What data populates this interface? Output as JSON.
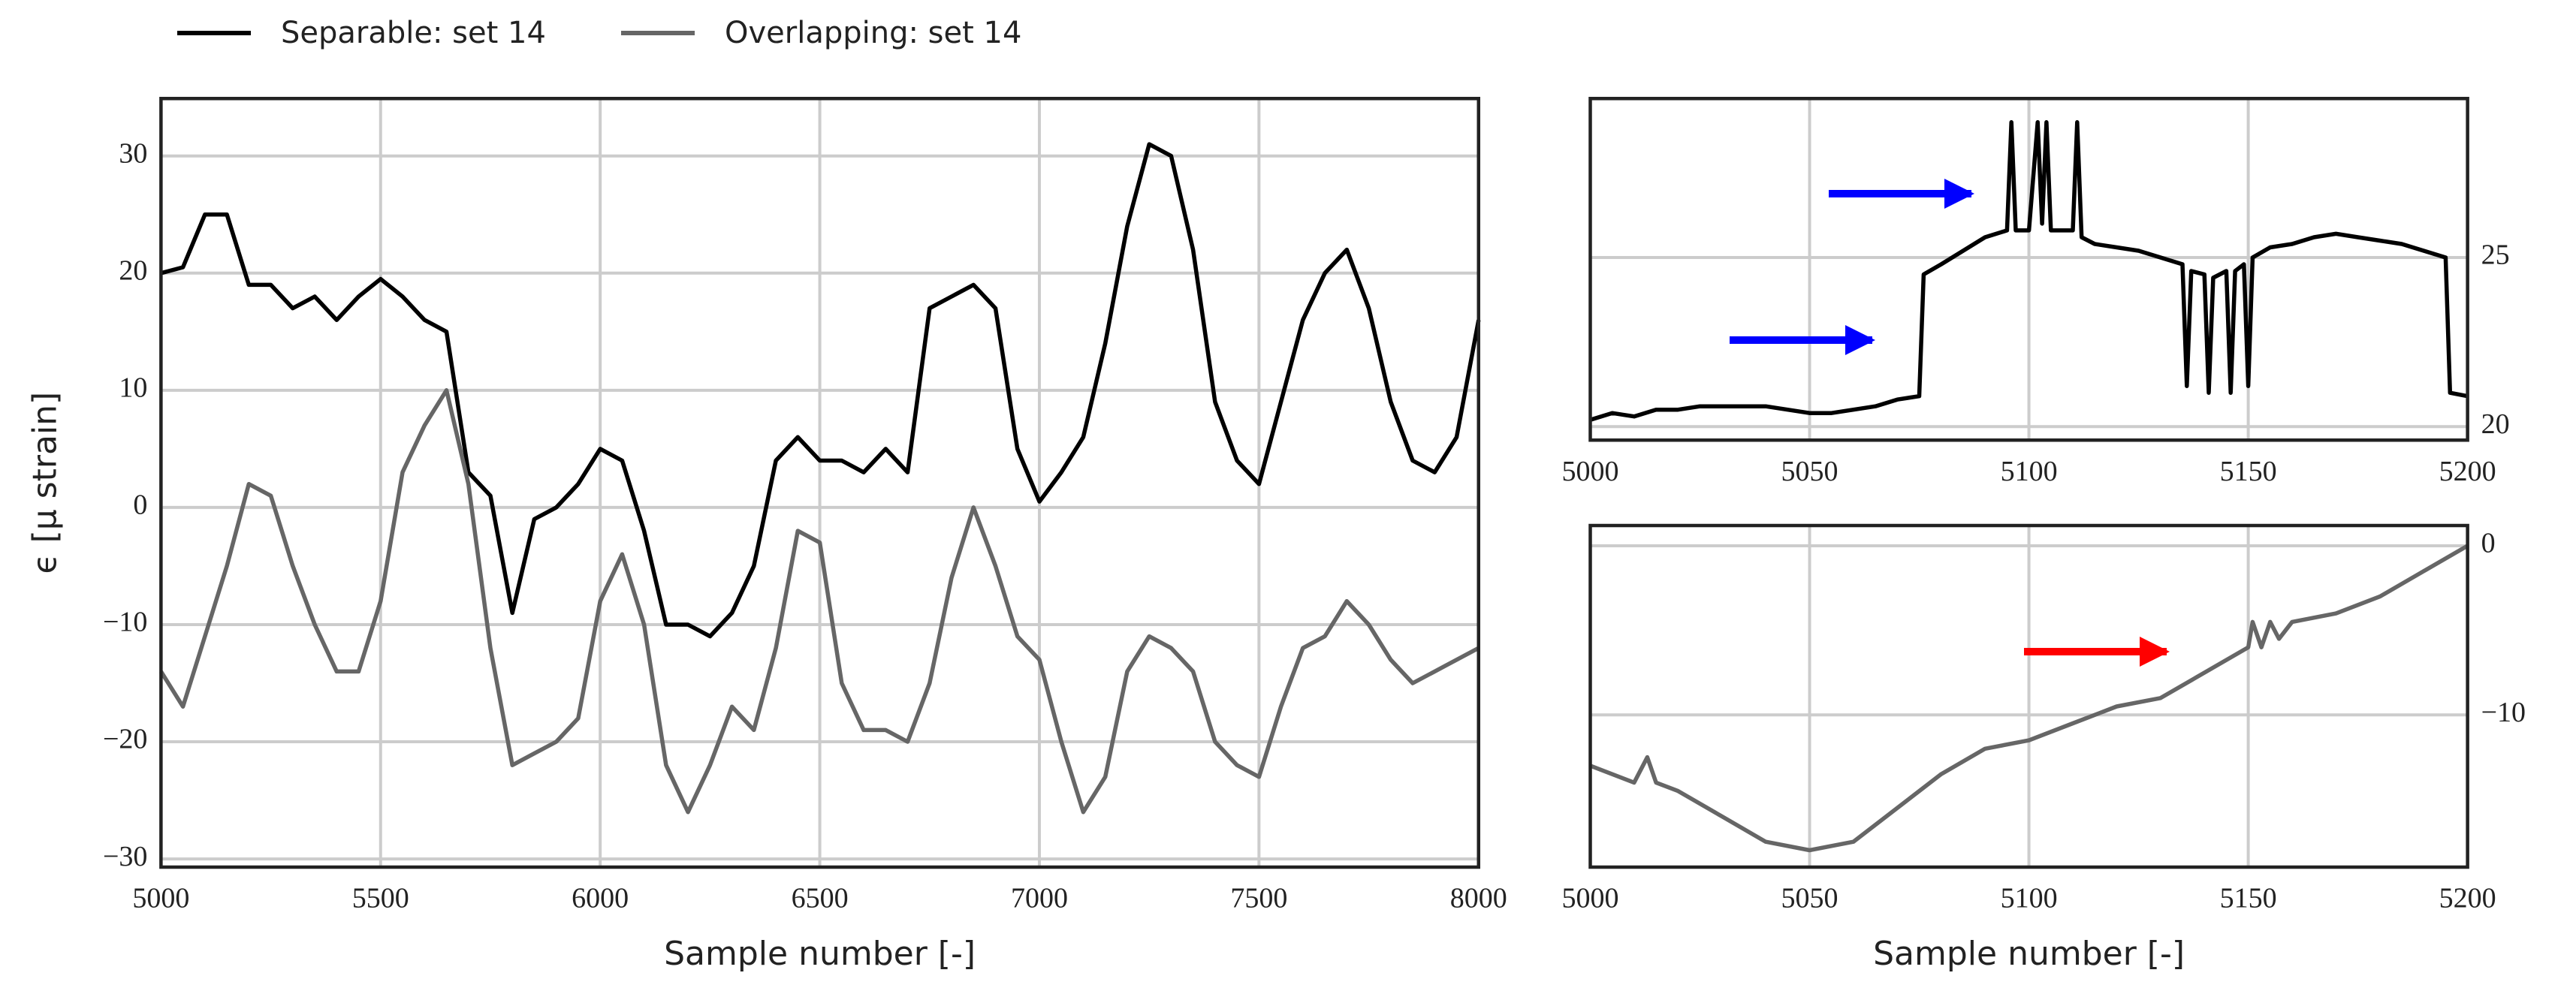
{
  "chart_data": [
    {
      "type": "line",
      "x_label": "Sample number [-]",
      "y_label": "ϵ [μ strain]",
      "grid": true,
      "ytick_side": "left",
      "xlim": [
        5000,
        8000
      ],
      "ylim": [
        -30.7,
        34.9
      ],
      "xticks": [
        5000,
        5500,
        6000,
        6500,
        7000,
        7500,
        8000
      ],
      "yticks": [
        {
          "value": -30,
          "label": "−30"
        },
        {
          "value": -20,
          "label": "−20"
        },
        {
          "value": -10,
          "label": "−10"
        },
        0,
        10,
        20,
        30
      ],
      "x": [
        5000,
        5050,
        5100,
        5150,
        5200,
        5250,
        5300,
        5350,
        5400,
        5450,
        5500,
        5550,
        5600,
        5650,
        5700,
        5750,
        5800,
        5850,
        5900,
        5950,
        6000,
        6050,
        6100,
        6150,
        6200,
        6250,
        6300,
        6350,
        6400,
        6450,
        6500,
        6550,
        6600,
        6650,
        6700,
        6750,
        6800,
        6850,
        6900,
        6950,
        7000,
        7050,
        7100,
        7150,
        7200,
        7250,
        7300,
        7350,
        7400,
        7450,
        7500,
        7550,
        7600,
        7650,
        7700,
        7750,
        7800,
        7850,
        7900,
        7950,
        8000
      ],
      "series": [
        {
          "name": "Separable: set 14",
          "color": "#000000",
          "values": [
            20,
            20.5,
            25,
            25,
            19,
            19,
            17,
            18,
            16,
            18,
            19.5,
            18,
            16,
            15,
            3,
            1,
            -9,
            -1,
            0,
            2,
            5,
            4,
            -2,
            -10,
            -10,
            -11,
            -9,
            -5,
            4,
            6,
            4,
            4,
            3,
            5,
            3,
            17,
            18,
            19,
            17,
            5,
            0.5,
            3,
            6,
            14,
            24,
            31,
            30,
            22,
            9,
            4,
            2,
            9,
            16,
            20,
            22,
            17,
            9,
            4,
            3,
            6,
            16
          ]
        },
        {
          "name": "Overlapping: set 14",
          "color": "#666666",
          "values": [
            -14,
            -17,
            -11,
            -5,
            2,
            1,
            -5,
            -10,
            -14,
            -14,
            -8,
            3,
            7,
            10,
            2,
            -12,
            -22,
            -21,
            -20,
            -18,
            -8,
            -4,
            -10,
            -22,
            -26,
            -22,
            -17,
            -19,
            -12,
            -2,
            -3,
            -15,
            -19,
            -19,
            -20,
            -15,
            -6,
            0,
            -5,
            -11,
            -13,
            -20,
            -26,
            -23,
            -14,
            -11,
            -12,
            -14,
            -20,
            -22,
            -23,
            -17,
            -12,
            -11,
            -8,
            -10,
            -13,
            -15,
            -14,
            -13,
            -12
          ]
        }
      ]
    },
    {
      "type": "line",
      "grid": true,
      "ytick_side": "right",
      "xlim": [
        5000,
        5200
      ],
      "ylim": [
        19.6,
        29.7
      ],
      "xticks": [
        5000,
        5050,
        5100,
        5150,
        5200
      ],
      "yticks": [
        20,
        25
      ],
      "x": [
        5000,
        5005,
        5010,
        5015,
        5020,
        5025,
        5030,
        5035,
        5040,
        5045,
        5050,
        5055,
        5060,
        5065,
        5070,
        5075,
        5076,
        5080,
        5085,
        5090,
        5095,
        5096,
        5097,
        5100,
        5102,
        5103,
        5104,
        5105,
        5110,
        5111,
        5112,
        5115,
        5120,
        5125,
        5130,
        5135,
        5136,
        5137,
        5140,
        5141,
        5142,
        5145,
        5146,
        5147,
        5149,
        5150,
        5151,
        5155,
        5160,
        5165,
        5170,
        5175,
        5180,
        5185,
        5190,
        5195,
        5196,
        5200
      ],
      "series": [
        {
          "color": "#000000",
          "values": [
            20.2,
            20.4,
            20.3,
            20.5,
            20.5,
            20.6,
            20.6,
            20.6,
            20.6,
            20.5,
            20.4,
            20.4,
            20.5,
            20.6,
            20.8,
            20.9,
            24.5,
            24.8,
            25.2,
            25.6,
            25.8,
            29,
            25.8,
            25.8,
            29,
            26,
            29,
            25.8,
            25.8,
            29,
            25.6,
            25.4,
            25.3,
            25.2,
            25.0,
            24.8,
            21.2,
            24.6,
            24.5,
            21,
            24.4,
            24.6,
            21,
            24.6,
            24.8,
            21.2,
            25,
            25.3,
            25.4,
            25.6,
            25.7,
            25.6,
            25.5,
            25.4,
            25.2,
            25.0,
            21,
            20.9
          ]
        }
      ]
    },
    {
      "type": "line",
      "x_label": "Sample number [-]",
      "grid": true,
      "ytick_side": "right",
      "xlim": [
        5000,
        5200
      ],
      "ylim": [
        -19.0,
        1.2
      ],
      "xticks": [
        5000,
        5050,
        5100,
        5150,
        5200
      ],
      "yticks": [
        {
          "value": -10,
          "label": "−10"
        },
        0
      ],
      "x": [
        5000,
        5010,
        5013,
        5015,
        5020,
        5030,
        5040,
        5050,
        5060,
        5070,
        5080,
        5090,
        5100,
        5110,
        5120,
        5130,
        5140,
        5150,
        5151,
        5153,
        5155,
        5157,
        5160,
        5170,
        5180,
        5190,
        5200
      ],
      "series": [
        {
          "color": "#666666",
          "values": [
            -13,
            -14,
            -12.5,
            -14,
            -14.5,
            -16,
            -17.5,
            -18,
            -17.5,
            -15.5,
            -13.5,
            -12,
            -11.5,
            -10.5,
            -9.5,
            -9,
            -7.5,
            -6,
            -4.5,
            -6,
            -4.5,
            -5.5,
            -4.5,
            -4,
            -3,
            -1.5,
            0
          ]
        }
      ]
    }
  ]
}
